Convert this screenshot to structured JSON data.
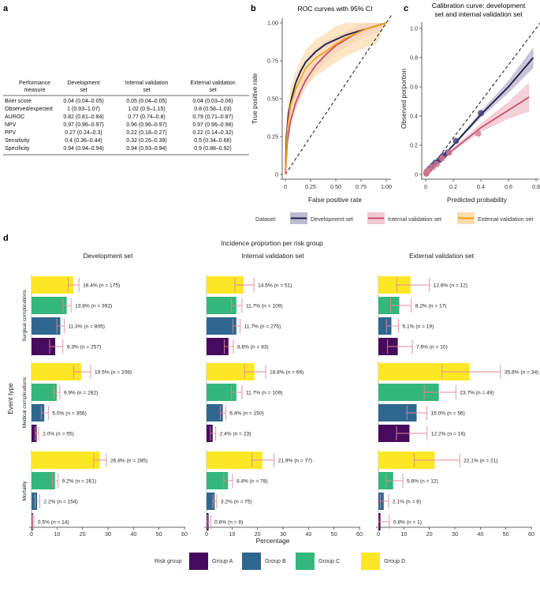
{
  "panels": {
    "a": "a",
    "b": "b",
    "c": "c",
    "d": "d"
  },
  "table": {
    "headers": [
      [
        "Performance",
        "measure"
      ],
      [
        "Development",
        "set"
      ],
      [
        "Internal validation",
        "set"
      ],
      [
        "External validation",
        "set"
      ]
    ],
    "rows": [
      [
        "Brier score",
        "0.04 (0.04–0.05)",
        "0.05 (0.04–0.05)",
        "0.04 (0.03–0.06)"
      ],
      [
        "Observed/expected",
        "1 (0.93–1.07)",
        "1.02 (0.9–1.15)",
        "0.8 (0.58–1.03)"
      ],
      [
        "AUROC",
        "0.82 (0.81–0.84)",
        "0.77 (0.74–0.8)",
        "0.79 (0.71–0.87)"
      ],
      [
        "NPV",
        "0.97 (0.96–0.97)",
        "0.96 (0.96–0.97)",
        "0.97 (0.96–0.98)"
      ],
      [
        "PPV",
        "0.27 (0.24–0.3)",
        "0.22 (0.18–0.27)",
        "0.22 (0.14–0.32)"
      ],
      [
        "Sensitivity",
        "0.4 (0.36–0.44)",
        "0.32 (0.26–0.39)",
        "0.5 (0.34–0.66)"
      ],
      [
        "Specificity",
        "0.94 (0.94–0.94)",
        "0.94 (0.93–0.94)",
        "0.9 (0.88–0.92)"
      ]
    ]
  },
  "legend_dataset": {
    "title": "Dataset:",
    "items": [
      "Development set",
      "Internal validation set",
      "External validation set"
    ],
    "colors": [
      "#1f1d4d",
      "#c8506a",
      "#f3a11b"
    ],
    "band_colors": [
      "#bdbbd0",
      "#f2c8d1",
      "#fbdcae"
    ]
  },
  "legend_risk": {
    "title": "Risk group",
    "items": [
      "Group A",
      "Group B",
      "Group C",
      "Group D"
    ],
    "colors": [
      "#460b5e",
      "#2e6891",
      "#34b77a",
      "#fde725"
    ]
  },
  "chart_data": [
    {
      "type": "line",
      "title": "ROC curves with 95% CI",
      "xlabel": "False positive rate",
      "ylabel": "True positive rate",
      "xlim": [
        0,
        1
      ],
      "ylim": [
        0,
        1
      ],
      "xticks": [
        "0",
        "0.25",
        "0.50",
        "0.75",
        "1.00"
      ],
      "yticks": [
        "0",
        "0.25",
        "0.50",
        "0.75",
        "1.00"
      ],
      "series": [
        {
          "name": "Development set",
          "x": [
            0,
            0.01,
            0.03,
            0.06,
            0.1,
            0.15,
            0.2,
            0.3,
            0.4,
            0.5,
            0.6,
            0.7,
            0.8,
            0.9,
            1.0
          ],
          "y": [
            0,
            0.25,
            0.4,
            0.5,
            0.6,
            0.68,
            0.74,
            0.81,
            0.86,
            0.89,
            0.92,
            0.94,
            0.96,
            0.98,
            1.0
          ],
          "band": 0.02
        },
        {
          "name": "Internal validation set",
          "x": [
            0,
            0.02,
            0.05,
            0.1,
            0.15,
            0.2,
            0.3,
            0.4,
            0.5,
            0.6,
            0.7,
            0.8,
            0.9,
            1.0
          ],
          "y": [
            0,
            0.22,
            0.35,
            0.47,
            0.55,
            0.62,
            0.72,
            0.79,
            0.85,
            0.89,
            0.93,
            0.96,
            0.98,
            1.0
          ],
          "band": 0.05
        },
        {
          "name": "External validation set",
          "x": [
            0,
            0.02,
            0.05,
            0.1,
            0.15,
            0.2,
            0.3,
            0.4,
            0.5,
            0.6,
            0.7,
            0.8,
            0.9,
            1.0
          ],
          "y": [
            0,
            0.3,
            0.45,
            0.56,
            0.63,
            0.7,
            0.77,
            0.81,
            0.86,
            0.9,
            0.93,
            0.96,
            0.98,
            1.0
          ],
          "band": 0.12
        }
      ]
    },
    {
      "type": "scatter",
      "title": [
        "Calibration curve: development",
        "set and internal validation set"
      ],
      "xlabel": "Predicted probability",
      "ylabel": "Observed porportion",
      "xlim": [
        0,
        0.8
      ],
      "ylim": [
        0,
        1
      ],
      "xticks": [
        "0",
        "0.2",
        "0.4",
        "0.6",
        "0.8"
      ],
      "yticks": [
        "0",
        "0.2",
        "0.4",
        "0.6",
        "0.8",
        "1.0"
      ],
      "series": [
        {
          "name": "Development set",
          "line": [
            [
              0,
              0
            ],
            [
              0.2,
              0.2
            ],
            [
              0.4,
              0.41
            ],
            [
              0.6,
              0.6
            ],
            [
              0.78,
              0.8
            ]
          ],
          "band": [
            0.005,
            0.02,
            0.05,
            0.07
          ],
          "points": [
            [
              0.005,
              0.01
            ],
            [
              0.01,
              0.02
            ],
            [
              0.02,
              0.03
            ],
            [
              0.03,
              0.04
            ],
            [
              0.05,
              0.06
            ],
            [
              0.07,
              0.08
            ],
            [
              0.1,
              0.1
            ],
            [
              0.13,
              0.13
            ],
            [
              0.16,
              0.15
            ],
            [
              0.22,
              0.23
            ],
            [
              0.4,
              0.42
            ]
          ]
        },
        {
          "name": "Internal validation set",
          "line": [
            [
              0,
              0
            ],
            [
              0.2,
              0.17
            ],
            [
              0.4,
              0.32
            ],
            [
              0.6,
              0.44
            ],
            [
              0.75,
              0.53
            ]
          ],
          "band": [
            0.005,
            0.02,
            0.05,
            0.1
          ],
          "points": [
            [
              0.005,
              0.005
            ],
            [
              0.01,
              0.02
            ],
            [
              0.02,
              0.03
            ],
            [
              0.05,
              0.05
            ],
            [
              0.08,
              0.07
            ],
            [
              0.12,
              0.11
            ],
            [
              0.17,
              0.15
            ],
            [
              0.38,
              0.28
            ]
          ]
        }
      ]
    },
    {
      "type": "bar",
      "title": "Incidence proportion per risk group",
      "xlabel": "Percentage",
      "ylabel": "Event type",
      "xlim": [
        0,
        60
      ],
      "xticks": [
        "0",
        "10",
        "20",
        "30",
        "40",
        "50",
        "60"
      ],
      "columns": [
        "Development set",
        "Internal validation set",
        "External validation set"
      ],
      "event_types": [
        "Surgical complications",
        "Medical complications",
        "Mortality"
      ],
      "groups_top_to_bottom": [
        "Group D",
        "Group C",
        "Group B",
        "Group A"
      ],
      "values": [
        [
          [
            16.4,
            13.8,
            11.3,
            9.3
          ],
          [
            19.5,
            9.9,
            5.0,
            2.0
          ],
          [
            26.8,
            9.2,
            2.2,
            0.5
          ]
        ],
        [
          [
            14.5,
            11.7,
            11.7,
            8.6
          ],
          [
            18.8,
            11.7,
            6.4,
            2.4
          ],
          [
            21.9,
            8.4,
            3.2,
            0.8
          ]
        ],
        [
          [
            12.6,
            8.2,
            5.1,
            7.6
          ],
          [
            35.8,
            23.7,
            15.0,
            12.2
          ],
          [
            22.1,
            5.8,
            2.1,
            0.8
          ]
        ]
      ],
      "ci": [
        [
          [
            [
              14.4,
              18.6
            ],
            [
              12.3,
              15.5
            ],
            [
              9.9,
              12.8
            ],
            [
              7.1,
              12.3
            ]
          ],
          [
            [
              16.5,
              23.2
            ],
            [
              8.8,
              11.1
            ],
            [
              3.8,
              6.6
            ],
            [
              1.4,
              2.8
            ]
          ],
          [
            [
              24.4,
              29.4
            ],
            [
              8.2,
              10.4
            ],
            [
              1.4,
              3.2
            ],
            [
              0.3,
              0.9
            ]
          ]
        ],
        [
          [
            [
              11.1,
              18.6
            ],
            [
              9.8,
              13.9
            ],
            [
              10.3,
              13.2
            ],
            [
              7.0,
              10.5
            ]
          ],
          [
            [
              14.9,
              23.2
            ],
            [
              9.8,
              13.9
            ],
            [
              5.4,
              7.5
            ],
            [
              1.5,
              3.6
            ]
          ],
          [
            [
              17.8,
              26.5
            ],
            [
              6.8,
              10.2
            ],
            [
              2.5,
              4.0
            ],
            [
              0.3,
              1.6
            ]
          ]
        ],
        [
          [
            [
              7.2,
              20.0
            ],
            [
              4.8,
              12.9
            ],
            [
              3.2,
              7.9
            ],
            [
              3.6,
              13.3
            ]
          ],
          [
            [
              25.0,
              47.9
            ],
            [
              18.0,
              30.4
            ],
            [
              11.2,
              19.0
            ],
            [
              7.1,
              19.1
            ]
          ],
          [
            [
              14.1,
              31.9
            ],
            [
              3.0,
              9.6
            ],
            [
              0.8,
              4.0
            ],
            [
              0.0,
              4.3
            ]
          ]
        ]
      ],
      "labels": [
        [
          [
            "16.4% (n = 175)",
            "13.8% (n = 392)",
            "11.3% (n = 805)",
            "9.3% (n = 257)"
          ],
          [
            "19.5% (n = 208)",
            "9.9% (n = 282)",
            "5.0% (n = 356)",
            "2.0% (n = 55)"
          ],
          [
            "26.8% (n = 285)",
            "9.2% (n = 261)",
            "2.2% (n = 154)",
            "0.5% (n = 14)"
          ]
        ],
        [
          [
            "14.5% (n = 51)",
            "11.7% (n = 109)",
            "11.7% (n = 275)",
            "8.6% (n = 83)"
          ],
          [
            "18.8% (n = 66)",
            "11.7% (n = 109)",
            "6.4% (n = 150)",
            "2.4% (n = 23)"
          ],
          [
            "21.9% (n = 77)",
            "8.4% (n = 78)",
            "3.2% (n = 75)",
            "0.8% (n = 8)"
          ]
        ],
        [
          [
            "12.6% (n = 12)",
            "8.2% (n = 17)",
            "5.1% (n = 19)",
            "7.6% (n = 10)"
          ],
          [
            "35.8% (n = 34)",
            "23.7% (n = 49)",
            "15.0% (n = 56)",
            "12.2% (n = 16)"
          ],
          [
            "22.1% (n = 21)",
            "5.8% (n = 12)",
            "2.1% (n = 8)",
            "0.8% (n = 1)"
          ]
        ]
      ]
    }
  ]
}
